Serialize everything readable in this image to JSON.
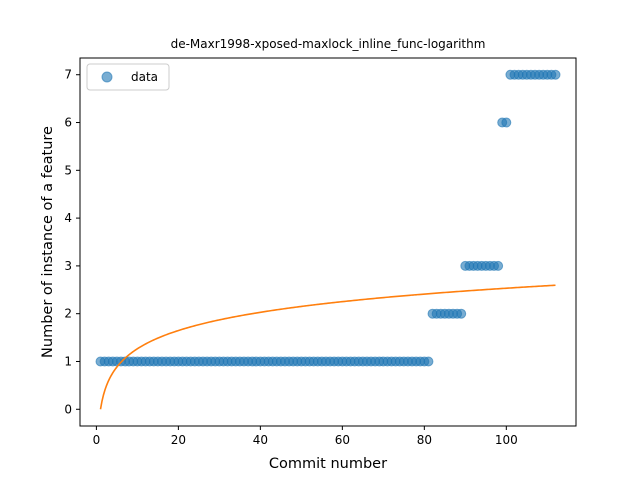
{
  "chart_data": {
    "type": "scatter",
    "title": "de-Maxr1998-xposed-maxlock_inline_func-logarithm",
    "xlabel": "Commit number",
    "ylabel": "Number of instance of a feature",
    "xlim": [
      -4,
      117
    ],
    "ylim": [
      -0.35,
      7.35
    ],
    "xticks": [
      0,
      20,
      40,
      60,
      80,
      100
    ],
    "yticks": [
      0,
      1,
      2,
      3,
      4,
      5,
      6,
      7
    ],
    "grid": false,
    "legend_position": "top-left",
    "series": [
      {
        "name": "data",
        "kind": "scatter",
        "color": "#1f77b4",
        "points": [
          [
            1,
            1
          ],
          [
            2,
            1
          ],
          [
            3,
            1
          ],
          [
            4,
            1
          ],
          [
            5,
            1
          ],
          [
            6,
            1
          ],
          [
            7,
            1
          ],
          [
            8,
            1
          ],
          [
            9,
            1
          ],
          [
            10,
            1
          ],
          [
            11,
            1
          ],
          [
            12,
            1
          ],
          [
            13,
            1
          ],
          [
            14,
            1
          ],
          [
            15,
            1
          ],
          [
            16,
            1
          ],
          [
            17,
            1
          ],
          [
            18,
            1
          ],
          [
            19,
            1
          ],
          [
            20,
            1
          ],
          [
            21,
            1
          ],
          [
            22,
            1
          ],
          [
            23,
            1
          ],
          [
            24,
            1
          ],
          [
            25,
            1
          ],
          [
            26,
            1
          ],
          [
            27,
            1
          ],
          [
            28,
            1
          ],
          [
            29,
            1
          ],
          [
            30,
            1
          ],
          [
            31,
            1
          ],
          [
            32,
            1
          ],
          [
            33,
            1
          ],
          [
            34,
            1
          ],
          [
            35,
            1
          ],
          [
            36,
            1
          ],
          [
            37,
            1
          ],
          [
            38,
            1
          ],
          [
            39,
            1
          ],
          [
            40,
            1
          ],
          [
            41,
            1
          ],
          [
            42,
            1
          ],
          [
            43,
            1
          ],
          [
            44,
            1
          ],
          [
            45,
            1
          ],
          [
            46,
            1
          ],
          [
            47,
            1
          ],
          [
            48,
            1
          ],
          [
            49,
            1
          ],
          [
            50,
            1
          ],
          [
            51,
            1
          ],
          [
            52,
            1
          ],
          [
            53,
            1
          ],
          [
            54,
            1
          ],
          [
            55,
            1
          ],
          [
            56,
            1
          ],
          [
            57,
            1
          ],
          [
            58,
            1
          ],
          [
            59,
            1
          ],
          [
            60,
            1
          ],
          [
            61,
            1
          ],
          [
            62,
            1
          ],
          [
            63,
            1
          ],
          [
            64,
            1
          ],
          [
            65,
            1
          ],
          [
            66,
            1
          ],
          [
            67,
            1
          ],
          [
            68,
            1
          ],
          [
            69,
            1
          ],
          [
            70,
            1
          ],
          [
            71,
            1
          ],
          [
            72,
            1
          ],
          [
            73,
            1
          ],
          [
            74,
            1
          ],
          [
            75,
            1
          ],
          [
            76,
            1
          ],
          [
            77,
            1
          ],
          [
            78,
            1
          ],
          [
            79,
            1
          ],
          [
            80,
            1
          ],
          [
            81,
            1
          ],
          [
            82,
            2
          ],
          [
            83,
            2
          ],
          [
            84,
            2
          ],
          [
            85,
            2
          ],
          [
            86,
            2
          ],
          [
            87,
            2
          ],
          [
            88,
            2
          ],
          [
            89,
            2
          ],
          [
            90,
            3
          ],
          [
            91,
            3
          ],
          [
            92,
            3
          ],
          [
            93,
            3
          ],
          [
            94,
            3
          ],
          [
            95,
            3
          ],
          [
            96,
            3
          ],
          [
            97,
            3
          ],
          [
            98,
            3
          ],
          [
            99,
            6
          ],
          [
            100,
            6
          ],
          [
            101,
            7
          ],
          [
            102,
            7
          ],
          [
            103,
            7
          ],
          [
            104,
            7
          ],
          [
            105,
            7
          ],
          [
            106,
            7
          ],
          [
            107,
            7
          ],
          [
            108,
            7
          ],
          [
            109,
            7
          ],
          [
            110,
            7
          ],
          [
            111,
            7
          ],
          [
            112,
            7
          ]
        ]
      },
      {
        "name": "",
        "kind": "line",
        "color": "#ff7f0e",
        "function": "a*ln(x)",
        "a": 0.55,
        "x_range": [
          1,
          112
        ]
      }
    ]
  }
}
